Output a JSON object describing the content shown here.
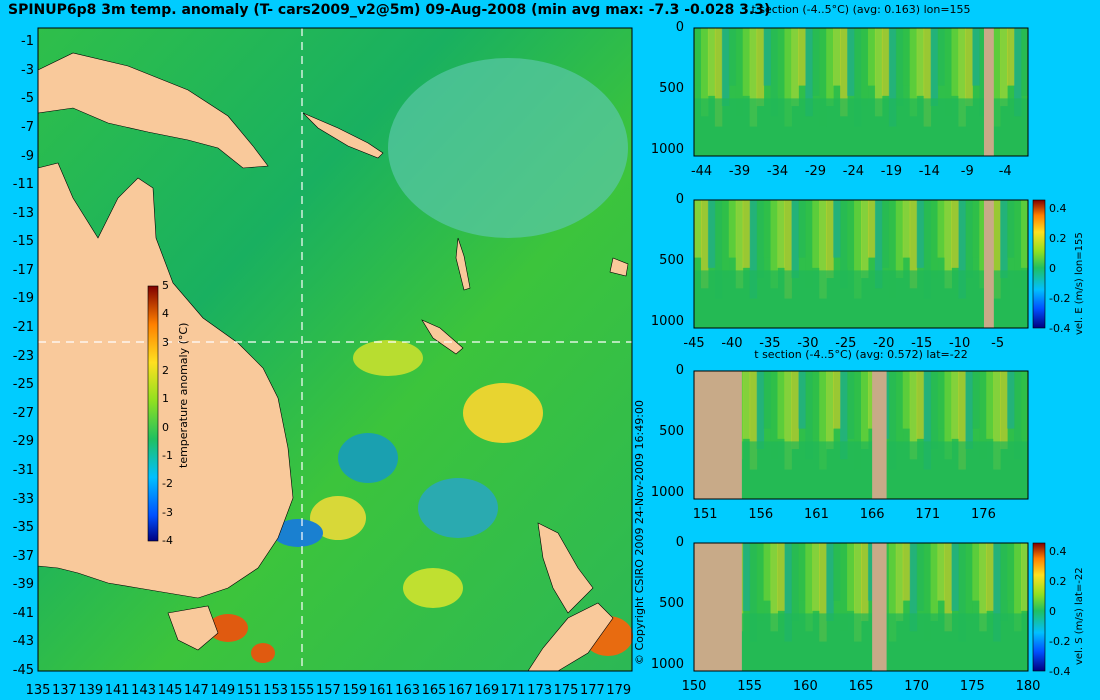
{
  "title": "SPINUP6p8 3m temp. anomaly (T- cars2009_v2@5m) 09-Aug-2008 (min avg max: -7.3 -0.028 3.3)",
  "copyright": "© Copyright CSIRO 2009  24-Nov-2009 16:49:00",
  "colors": {
    "background": "#00ccff",
    "land": "#f9c99b",
    "section_land": "#c8aa88",
    "ocean_mid": "#22bb44"
  },
  "chart_data": [
    {
      "id": "map",
      "type": "heatmap",
      "title": "SPINUP6p8 3m temp. anomaly (T- cars2009_v2@5m) 09-Aug-2008 (min avg max: -7.3 -0.028 3.3)",
      "xlim": [
        135,
        180
      ],
      "ylim": [
        -45,
        0
      ],
      "x_ticks": [
        "135",
        "137",
        "139",
        "141",
        "143",
        "145",
        "147",
        "149",
        "151",
        "153",
        "155",
        "157",
        "159",
        "161",
        "163",
        "165",
        "167",
        "169",
        "171",
        "173",
        "175",
        "177",
        "179"
      ],
      "y_ticks": [
        "-1",
        "-3",
        "-5",
        "-7",
        "-9",
        "-11",
        "-13",
        "-15",
        "-17",
        "-19",
        "-21",
        "-23",
        "-25",
        "-27",
        "-29",
        "-31",
        "-33",
        "-35",
        "-37",
        "-39",
        "-41",
        "-43",
        "-45"
      ],
      "section_lines": {
        "lon": 155,
        "lat": -22
      },
      "colorbar": {
        "label": "temperature anomaly (°C)",
        "range": [
          -4,
          5
        ],
        "ticks": [
          "5",
          "4",
          "3",
          "2",
          "1",
          "0",
          "-1",
          "-2",
          "-3",
          "-4"
        ]
      }
    },
    {
      "id": "tsec-lon",
      "type": "heatmap",
      "title": "t section (-4..5°C) (avg: 0.163) lon=155",
      "xlim": [
        -45,
        -1
      ],
      "ylim": [
        1050,
        0
      ],
      "x_ticks": [
        "-44",
        "-39",
        "-34",
        "-29",
        "-24",
        "-19",
        "-14",
        "-9",
        "-4"
      ],
      "y_ticks": [
        "0",
        "500",
        "1000"
      ]
    },
    {
      "id": "vel-e",
      "type": "heatmap",
      "title": "",
      "xlim": [
        -45,
        -1
      ],
      "ylim": [
        1050,
        0
      ],
      "x_ticks": [
        "-45",
        "-40",
        "-35",
        "-30",
        "-25",
        "-20",
        "-15",
        "-10",
        "-5"
      ],
      "y_ticks": [
        "0",
        "500",
        "1000"
      ],
      "colorbar": {
        "label": "vel. E (m/s) lon=155",
        "range": [
          -0.4,
          0.45
        ],
        "ticks": [
          "0.4",
          "0.2",
          "0",
          "-0.2",
          "-0.4"
        ]
      }
    },
    {
      "id": "tsec-lat",
      "type": "heatmap",
      "title": "t section (-4..5°C) (avg: 0.572) lat=-22",
      "xlim": [
        150,
        180
      ],
      "ylim": [
        1050,
        0
      ],
      "x_ticks": [
        "151",
        "156",
        "161",
        "166",
        "171",
        "176"
      ],
      "y_ticks": [
        "0",
        "500",
        "1000"
      ]
    },
    {
      "id": "vel-s",
      "type": "heatmap",
      "title": "",
      "xlim": [
        150,
        180
      ],
      "ylim": [
        1050,
        0
      ],
      "x_ticks": [
        "150",
        "155",
        "160",
        "165",
        "170",
        "175",
        "180"
      ],
      "y_ticks": [
        "0",
        "500",
        "1000"
      ],
      "colorbar": {
        "label": "vel. S (m/s) lat=-22",
        "range": [
          -0.4,
          0.45
        ],
        "ticks": [
          "0.4",
          "0.2",
          "0",
          "-0.2",
          "-0.4"
        ]
      }
    }
  ]
}
